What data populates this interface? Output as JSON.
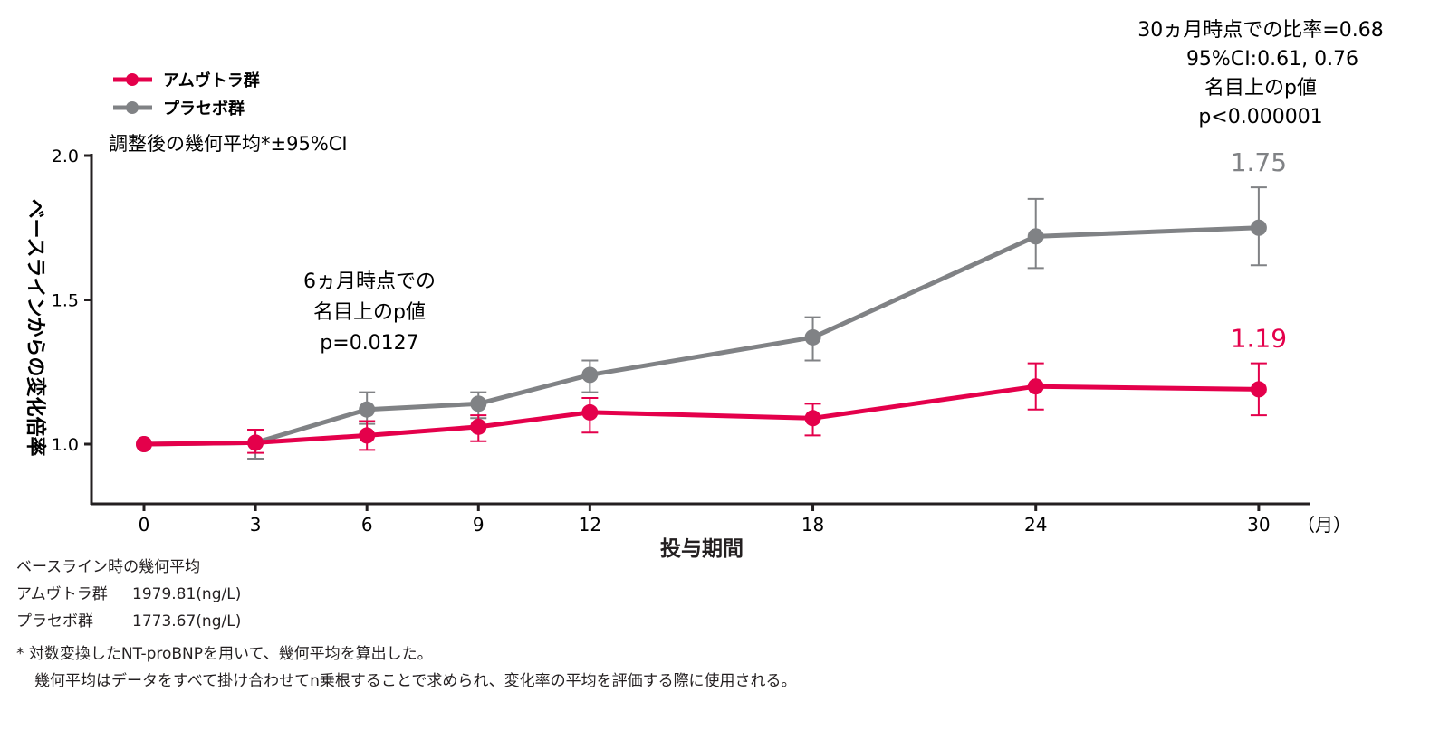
{
  "chart_data": {
    "type": "line",
    "subtitle": "調整後の幾何平均*±95%CI",
    "xlabel": "投与期間",
    "x_unit": "（月）",
    "ylabel": "ベースラインからの変化倍率",
    "x": [
      0,
      3,
      6,
      9,
      12,
      18,
      24,
      30
    ],
    "x_ticks": [
      "0",
      "3",
      "6",
      "9",
      "12",
      "18",
      "24",
      "30"
    ],
    "y_ticks": [
      "1.0",
      "1.5",
      "2.0"
    ],
    "ylim": [
      0.8,
      2.0
    ],
    "xlim": [
      -1.4,
      31.3
    ],
    "grid": false,
    "legend_position": "top-left",
    "series": [
      {
        "name": "アムヴトラ群",
        "color": "#e4004b",
        "values": [
          1.0,
          1.005,
          1.03,
          1.06,
          1.11,
          1.09,
          1.2,
          1.19
        ],
        "ci_low": [
          null,
          0.97,
          0.98,
          1.01,
          1.04,
          1.03,
          1.12,
          1.1
        ],
        "ci_high": [
          null,
          1.05,
          1.08,
          1.1,
          1.16,
          1.14,
          1.28,
          1.28
        ],
        "end_label": "1.19"
      },
      {
        "name": "プラセボ群",
        "color": "#808285",
        "values": [
          1.0,
          1.005,
          1.12,
          1.14,
          1.24,
          1.37,
          1.72,
          1.75
        ],
        "ci_low": [
          null,
          0.95,
          1.07,
          1.09,
          1.18,
          1.29,
          1.61,
          1.62
        ],
        "ci_high": [
          null,
          1.05,
          1.18,
          1.18,
          1.29,
          1.44,
          1.85,
          1.89
        ],
        "end_label": "1.75"
      }
    ],
    "annotations": {
      "month6": [
        "6ヵ月時点での",
        "名目上のp値",
        "p=0.0127"
      ],
      "month30": [
        "30ヵ月時点での比率=0.68",
        "95%CI:0.61, 0.76",
        "名目上のp値",
        "p<0.000001"
      ]
    }
  },
  "notes": {
    "baseline_title": "ベースライン時の幾何平均",
    "baseline_rows": [
      {
        "group": "アムヴトラ群",
        "value": "1979.81(ng/L)"
      },
      {
        "group": "プラセボ群",
        "value": "1773.67(ng/L)"
      }
    ],
    "footnote_1": "* 対数変換したNT-proBNPを用いて、幾何平均を算出した。",
    "footnote_2": "幾何平均はデータをすべて掛け合わせてn乗根することで求められ、変化率の平均を評価する際に使用される。"
  }
}
